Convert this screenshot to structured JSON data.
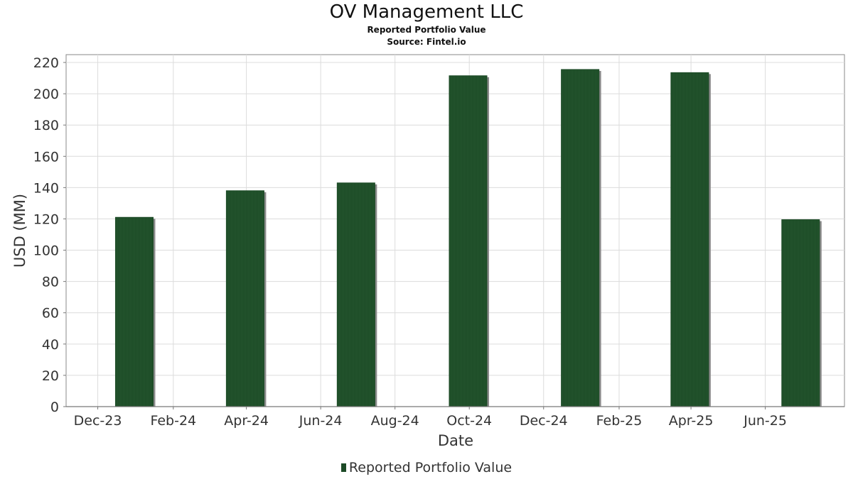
{
  "title": "OV Management LLC",
  "subtitle": "Reported Portfolio Value",
  "source": "Source: Fintel.io",
  "legend_label": "Reported Portfolio Value",
  "colors": {
    "bar": "#1c4a26",
    "bar_shadow": "#8a8a8a",
    "grid": "#dcdcdc",
    "axis": "#888888"
  },
  "chart_data": {
    "type": "bar",
    "title": "OV Management LLC",
    "subtitle": "Reported Portfolio Value",
    "xlabel": "Date",
    "ylabel": "USD (MM)",
    "ylim": [
      0,
      225
    ],
    "yticks": [
      0,
      20,
      40,
      60,
      80,
      100,
      120,
      140,
      160,
      180,
      200,
      220
    ],
    "xlim": [
      "2023-11-05",
      "2025-08-05"
    ],
    "xticks": [
      {
        "label": "Dec-23",
        "date": "2023-12-01"
      },
      {
        "label": "Feb-24",
        "date": "2024-02-01"
      },
      {
        "label": "Apr-24",
        "date": "2024-04-01"
      },
      {
        "label": "Jun-24",
        "date": "2024-06-01"
      },
      {
        "label": "Aug-24",
        "date": "2024-08-01"
      },
      {
        "label": "Oct-24",
        "date": "2024-10-01"
      },
      {
        "label": "Dec-24",
        "date": "2024-12-01"
      },
      {
        "label": "Feb-25",
        "date": "2025-02-01"
      },
      {
        "label": "Apr-25",
        "date": "2025-04-01"
      },
      {
        "label": "Jun-25",
        "date": "2025-06-01"
      }
    ],
    "grid": true,
    "legend_position": "bottom",
    "series": [
      {
        "name": "Reported Portfolio Value",
        "points": [
          {
            "date": "2023-12-31",
            "value": 121
          },
          {
            "date": "2024-03-31",
            "value": 138
          },
          {
            "date": "2024-06-30",
            "value": 143
          },
          {
            "date": "2024-09-30",
            "value": 211.5
          },
          {
            "date": "2024-12-31",
            "value": 215.5
          },
          {
            "date": "2025-03-31",
            "value": 213.5
          },
          {
            "date": "2025-06-30",
            "value": 119.5
          }
        ]
      }
    ]
  }
}
